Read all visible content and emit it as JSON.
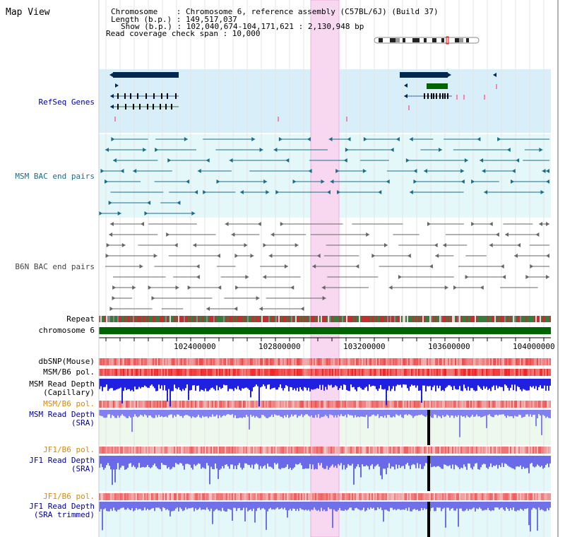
{
  "title": "Map View",
  "info": {
    "chromosome": "Chromosome    : Chromosome 6, reference assembly (C57BL/6J) (Build 37)",
    "length": "Length (b.p.) : 149,517,037",
    "show": "Show (b.p.) : 102,040,674-104,171,621 : 2,130,948 bp",
    "coverage": "Read coverage check span : 10,000"
  },
  "tracks": {
    "refseq": "RefSeq Genes",
    "msm_bac": "MSM BAC end pairs",
    "b6n_bac": "B6N BAC end pairs",
    "repeat": "Repeat",
    "chromosome": "chromosome 6",
    "dbsnp": "dbSNP(Mouse)",
    "msm_b6_pol": "MSM/B6 pol.",
    "msm_depth_cap_1": "MSM Read Depth",
    "msm_depth_cap_2": "(Capillary)",
    "msm_b6_pol2": "MSM/B6 pol.",
    "msm_depth_sra_1": "MSM Read Depth",
    "msm_depth_sra_2": "(SRA)",
    "jf1_b6_pol": "JF1/B6 pol.",
    "jf1_depth_sra_1": "JF1 Read Depth",
    "jf1_depth_sra_2": "(SRA)",
    "jf1_b6_pol2": "JF1/B6 pol.",
    "jf1_depth_trim_1": "JF1 Read Depth",
    "jf1_depth_trim_2": "(SRA trimmed)"
  },
  "axis_ticks": [
    "102400000",
    "102800000",
    "103200000",
    "103600000",
    "104000000"
  ],
  "colors": {
    "refseq_bg": "#d8eef8",
    "bac_bg": "#e4f8fa",
    "highlight": "#f8d8f0",
    "gene": "#002850",
    "msm_bac": "#1a6d8a",
    "b6n_bac": "#666666",
    "chromosome": "#006400",
    "label_blue": "#000099",
    "label_orange": "#dd8800",
    "depth_blue": "#2020e0",
    "depth_light": "#8080f0"
  }
}
